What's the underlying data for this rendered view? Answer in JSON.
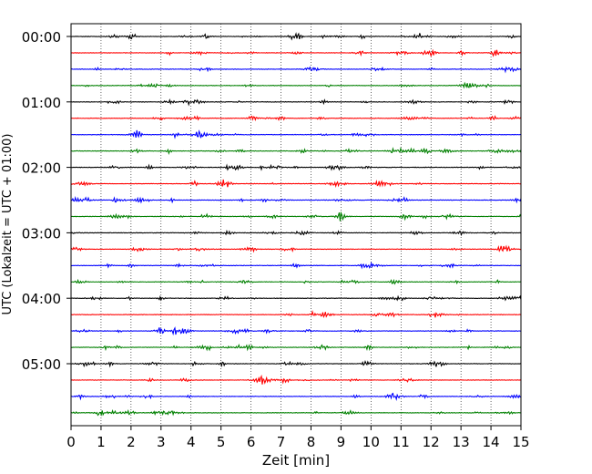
{
  "chart_data": {
    "type": "line",
    "title": "",
    "xlabel": "Zeit  [min]",
    "ylabel": "UTC (Lokalzeit = UTC + 01:00)",
    "xlim": [
      0,
      15
    ],
    "x_ticks": [
      0,
      1,
      2,
      3,
      4,
      5,
      6,
      7,
      8,
      9,
      10,
      11,
      12,
      13,
      14,
      15
    ],
    "x_tick_labels": [
      "0",
      "1",
      "2",
      "3",
      "4",
      "5",
      "6",
      "7",
      "8",
      "9",
      "10",
      "11",
      "12",
      "13",
      "14",
      "15"
    ],
    "y_tick_labels": [
      {
        "label": "00:00",
        "trace_index": 0
      },
      {
        "label": "01:00",
        "trace_index": 4
      },
      {
        "label": "02:00",
        "trace_index": 8
      },
      {
        "label": "03:00",
        "trace_index": 12
      },
      {
        "label": "04:00",
        "trace_index": 16
      },
      {
        "label": "05:00",
        "trace_index": 20
      }
    ],
    "trace_minutes": 15,
    "trace_count": 24,
    "trace_colors": [
      "#000000",
      "#ff0000",
      "#0000ff",
      "#008000"
    ],
    "vertical_grid": "dotted",
    "legend": "none"
  }
}
